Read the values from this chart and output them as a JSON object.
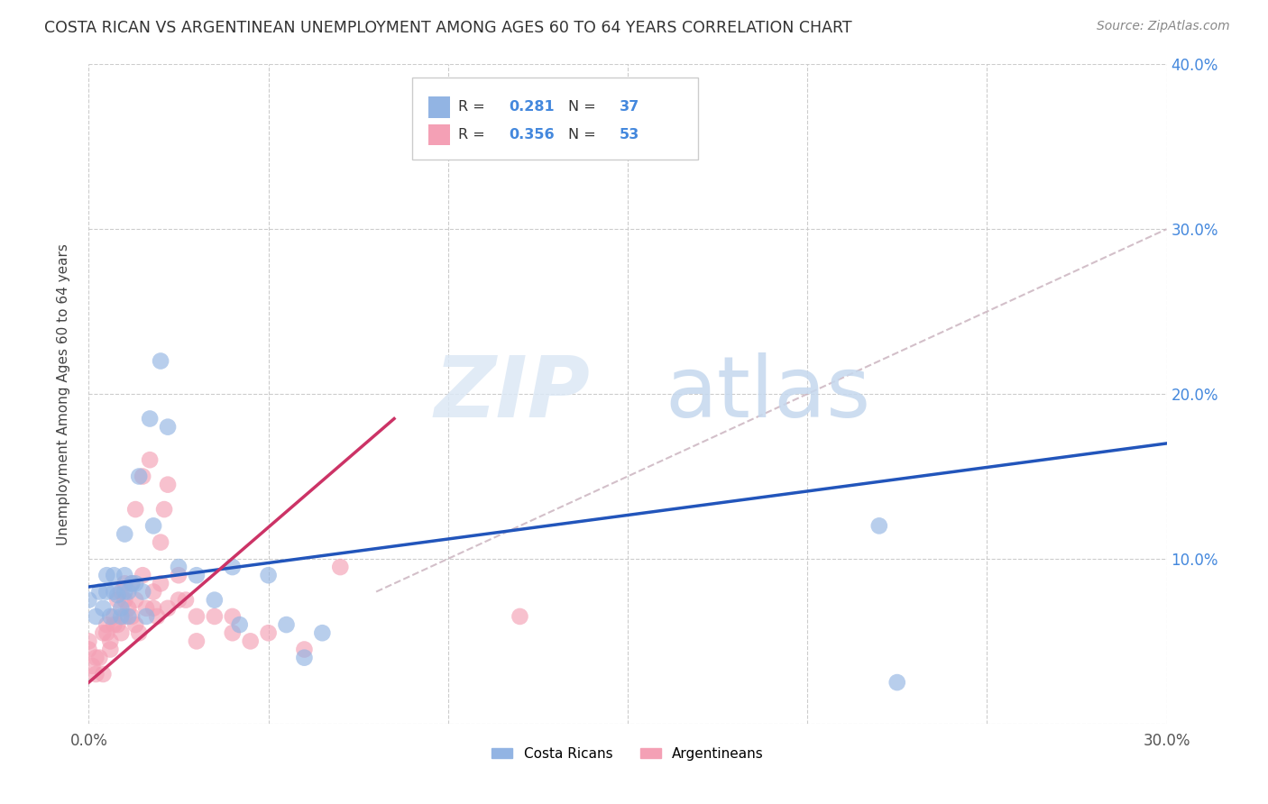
{
  "title": "COSTA RICAN VS ARGENTINEAN UNEMPLOYMENT AMONG AGES 60 TO 64 YEARS CORRELATION CHART",
  "source": "Source: ZipAtlas.com",
  "ylabel": "Unemployment Among Ages 60 to 64 years",
  "xlim": [
    0.0,
    0.3
  ],
  "ylim": [
    0.0,
    0.4
  ],
  "xticks": [
    0.0,
    0.05,
    0.1,
    0.15,
    0.2,
    0.25,
    0.3
  ],
  "yticks": [
    0.0,
    0.1,
    0.2,
    0.3,
    0.4
  ],
  "xticklabels_show": [
    "0.0%",
    "",
    "",
    "",
    "",
    "",
    "30.0%"
  ],
  "yticklabels_right": [
    "",
    "10.0%",
    "20.0%",
    "30.0%",
    "40.0%"
  ],
  "costa_rica_color": "#92b4e3",
  "argentina_color": "#f4a0b5",
  "costa_rica_R": 0.281,
  "costa_rica_N": 37,
  "argentina_R": 0.356,
  "argentina_N": 53,
  "blue_line_color": "#2255bb",
  "pink_line_color": "#cc3366",
  "dashed_line_color": "#c8b0bc",
  "watermark_zip": "ZIP",
  "watermark_atlas": "atlas",
  "grid_color": "#cccccc",
  "background_color": "#ffffff",
  "right_ytick_color": "#4488dd",
  "legend_R_N_color": "#4488dd",
  "legend_text_color": "#333333",
  "costa_ricans_x": [
    0.0,
    0.002,
    0.003,
    0.004,
    0.005,
    0.005,
    0.006,
    0.007,
    0.007,
    0.008,
    0.009,
    0.009,
    0.01,
    0.01,
    0.01,
    0.011,
    0.011,
    0.012,
    0.013,
    0.014,
    0.015,
    0.016,
    0.017,
    0.018,
    0.02,
    0.022,
    0.025,
    0.03,
    0.035,
    0.04,
    0.042,
    0.05,
    0.055,
    0.06,
    0.065,
    0.22,
    0.225
  ],
  "costa_ricans_y": [
    0.075,
    0.065,
    0.08,
    0.07,
    0.09,
    0.08,
    0.065,
    0.08,
    0.09,
    0.078,
    0.07,
    0.065,
    0.08,
    0.09,
    0.115,
    0.065,
    0.08,
    0.085,
    0.085,
    0.15,
    0.08,
    0.065,
    0.185,
    0.12,
    0.22,
    0.18,
    0.095,
    0.09,
    0.075,
    0.095,
    0.06,
    0.09,
    0.06,
    0.04,
    0.055,
    0.12,
    0.025
  ],
  "argentineans_x": [
    0.0,
    0.0,
    0.001,
    0.002,
    0.002,
    0.003,
    0.004,
    0.004,
    0.005,
    0.005,
    0.006,
    0.006,
    0.007,
    0.007,
    0.008,
    0.008,
    0.009,
    0.009,
    0.01,
    0.01,
    0.01,
    0.011,
    0.012,
    0.012,
    0.013,
    0.013,
    0.013,
    0.014,
    0.015,
    0.015,
    0.016,
    0.017,
    0.018,
    0.018,
    0.019,
    0.02,
    0.02,
    0.021,
    0.022,
    0.022,
    0.025,
    0.025,
    0.027,
    0.03,
    0.03,
    0.035,
    0.04,
    0.04,
    0.045,
    0.05,
    0.06,
    0.07,
    0.12
  ],
  "argentineans_y": [
    0.05,
    0.045,
    0.035,
    0.04,
    0.03,
    0.04,
    0.03,
    0.055,
    0.055,
    0.06,
    0.045,
    0.05,
    0.06,
    0.065,
    0.06,
    0.075,
    0.055,
    0.08,
    0.065,
    0.075,
    0.085,
    0.07,
    0.065,
    0.085,
    0.06,
    0.13,
    0.075,
    0.055,
    0.09,
    0.15,
    0.07,
    0.16,
    0.07,
    0.08,
    0.065,
    0.11,
    0.085,
    0.13,
    0.07,
    0.145,
    0.075,
    0.09,
    0.075,
    0.065,
    0.05,
    0.065,
    0.065,
    0.055,
    0.05,
    0.055,
    0.045,
    0.095,
    0.065
  ],
  "blue_line_x": [
    0.0,
    0.3
  ],
  "blue_line_y": [
    0.083,
    0.17
  ],
  "pink_line_x": [
    0.0,
    0.085
  ],
  "pink_line_y": [
    0.025,
    0.185
  ],
  "dashed_line_x": [
    0.08,
    0.3
  ],
  "dashed_line_y": [
    0.08,
    0.3
  ]
}
